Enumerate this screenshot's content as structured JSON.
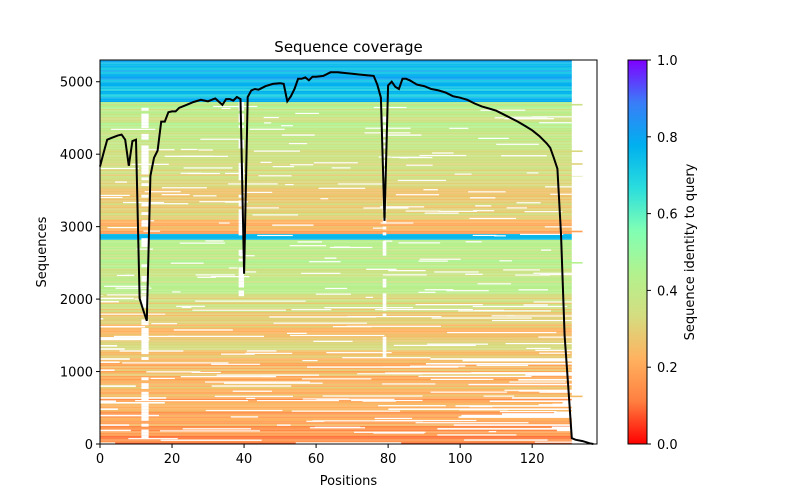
{
  "chart_data": {
    "type": "heatmap",
    "title": "Sequence coverage",
    "xlabel": "Positions",
    "ylabel": "Sequences",
    "xlim": [
      0,
      138
    ],
    "ylim": [
      0,
      5300
    ],
    "xticks": [
      0,
      20,
      40,
      60,
      80,
      100,
      120
    ],
    "xtick_labels": [
      "0",
      "20",
      "40",
      "60",
      "80",
      "100",
      "120"
    ],
    "yticks": [
      0,
      1000,
      2000,
      3000,
      4000,
      5000
    ],
    "ytick_labels": [
      "0",
      "1000",
      "2000",
      "3000",
      "4000",
      "5000"
    ],
    "grid": false,
    "colorbar": {
      "label": "Sequence identity to query",
      "colormap": "rainbow_r",
      "range": [
        0,
        1
      ],
      "ticks": [
        0.0,
        0.2,
        0.4,
        0.6,
        0.8,
        1.0
      ],
      "tick_labels": [
        "0.0",
        "0.2",
        "0.4",
        "0.6",
        "0.8",
        "1.0"
      ],
      "stops": [
        "#ff0000",
        "#ff7f40",
        "#ffb260",
        "#d4dd80",
        "#b2f28e",
        "#80ffb4",
        "#2adddd",
        "#00b0ef",
        "#3a7df8",
        "#7f00ff"
      ]
    },
    "identity_bands": [
      {
        "from": 0,
        "to": 250,
        "identity": 0.15
      },
      {
        "from": 250,
        "to": 700,
        "identity": 0.2
      },
      {
        "from": 700,
        "to": 1300,
        "identity": 0.24
      },
      {
        "from": 1300,
        "to": 1800,
        "identity": 0.28
      },
      {
        "from": 1800,
        "to": 2050,
        "identity": 0.32
      },
      {
        "from": 2050,
        "to": 2820,
        "identity": 0.4
      },
      {
        "from": 2820,
        "to": 2900,
        "identity": 0.72
      },
      {
        "from": 2900,
        "to": 3100,
        "identity": 0.22
      },
      {
        "from": 3100,
        "to": 3700,
        "identity": 0.3
      },
      {
        "from": 3700,
        "to": 4100,
        "identity": 0.33
      },
      {
        "from": 4100,
        "to": 4720,
        "identity": 0.4
      },
      {
        "from": 4720,
        "to": 5300,
        "identity": 0.75
      }
    ],
    "series": [
      {
        "name": "coverage",
        "color": "#000000",
        "x": [
          0,
          1,
          2,
          3,
          4,
          5,
          6,
          7,
          8,
          9,
          10,
          11,
          12,
          13,
          14,
          15,
          16,
          17,
          18,
          19,
          20,
          21,
          22,
          24,
          26,
          28,
          30,
          32,
          34,
          35,
          36,
          37,
          38,
          39,
          40,
          41,
          42,
          43,
          44,
          46,
          48,
          50,
          51,
          52,
          53,
          54,
          55,
          56,
          57,
          58,
          59,
          60,
          62,
          64,
          66,
          68,
          70,
          72,
          74,
          76,
          77,
          78,
          79,
          80,
          81,
          82,
          83,
          84,
          85,
          86,
          88,
          90,
          92,
          94,
          96,
          98,
          100,
          102,
          104,
          106,
          108,
          110,
          112,
          114,
          116,
          118,
          120,
          122,
          124,
          125,
          126,
          127,
          128,
          129,
          130,
          131,
          132,
          134,
          136,
          137
        ],
        "y": [
          3830,
          4020,
          4200,
          4220,
          4240,
          4260,
          4270,
          4200,
          3840,
          4180,
          4200,
          2010,
          1850,
          1700,
          3700,
          3950,
          4050,
          4450,
          4450,
          4580,
          4590,
          4590,
          4640,
          4680,
          4720,
          4750,
          4730,
          4770,
          4680,
          4760,
          4760,
          4740,
          4790,
          4760,
          2350,
          4790,
          4880,
          4900,
          4890,
          4940,
          4970,
          4980,
          4970,
          4730,
          4800,
          4900,
          5040,
          5040,
          5060,
          5020,
          5070,
          5070,
          5080,
          5130,
          5130,
          5120,
          5110,
          5100,
          5090,
          5080,
          4960,
          4780,
          3080,
          4950,
          5000,
          4930,
          4900,
          5040,
          5040,
          5020,
          4960,
          4940,
          4900,
          4880,
          4850,
          4800,
          4780,
          4750,
          4700,
          4660,
          4630,
          4600,
          4550,
          4500,
          4450,
          4390,
          4330,
          4250,
          4150,
          4090,
          3950,
          3800,
          2900,
          1500,
          800,
          80,
          60,
          40,
          10,
          0
        ]
      }
    ]
  }
}
